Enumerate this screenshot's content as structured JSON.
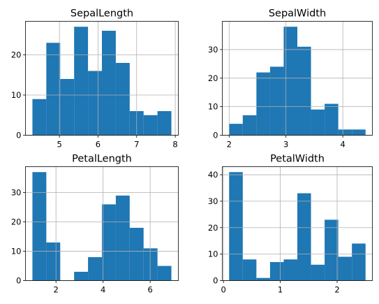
{
  "chart_data": [
    {
      "type": "bar",
      "title": "SepalLength",
      "bin_edges": [
        4.3,
        4.66,
        5.02,
        5.38,
        5.74,
        6.1,
        6.46,
        6.82,
        7.18,
        7.54,
        7.9
      ],
      "values": [
        9,
        23,
        14,
        27,
        16,
        26,
        18,
        6,
        5,
        6
      ],
      "xlim": [
        4.12,
        8.08
      ],
      "ylim": [
        0,
        28.35
      ],
      "xticks": [
        5,
        6,
        7,
        8
      ],
      "yticks": [
        0,
        10,
        20
      ],
      "grid": true
    },
    {
      "type": "bar",
      "title": "SepalWidth",
      "bin_edges": [
        2.0,
        2.24,
        2.48,
        2.72,
        2.96,
        3.2,
        3.44,
        3.68,
        3.92,
        4.16,
        4.4
      ],
      "values": [
        4,
        7,
        22,
        24,
        38,
        31,
        9,
        11,
        2,
        2
      ],
      "xlim": [
        1.88,
        4.52
      ],
      "ylim": [
        0,
        39.9
      ],
      "xticks": [
        2,
        3,
        4
      ],
      "yticks": [
        0,
        10,
        20,
        30
      ],
      "grid": true
    },
    {
      "type": "bar",
      "title": "PetalLength",
      "bin_edges": [
        1.0,
        1.59,
        2.18,
        2.77,
        3.36,
        3.95,
        4.54,
        5.13,
        5.72,
        6.31,
        6.9
      ],
      "values": [
        37,
        13,
        0,
        3,
        8,
        26,
        29,
        18,
        11,
        5
      ],
      "xlim": [
        0.705,
        7.195
      ],
      "ylim": [
        0,
        38.85
      ],
      "xticks": [
        2,
        4,
        6
      ],
      "yticks": [
        0,
        10,
        20,
        30
      ],
      "grid": true
    },
    {
      "type": "bar",
      "title": "PetalWidth",
      "bin_edges": [
        0.1,
        0.34,
        0.58,
        0.82,
        1.06,
        1.3,
        1.54,
        1.78,
        2.02,
        2.26,
        2.5
      ],
      "values": [
        41,
        8,
        1,
        7,
        8,
        33,
        6,
        23,
        9,
        14
      ],
      "xlim": [
        -0.02,
        2.62
      ],
      "ylim": [
        0,
        43.05
      ],
      "xticks": [
        0,
        1,
        2
      ],
      "yticks": [
        0,
        10,
        20,
        30,
        40
      ],
      "grid": true
    }
  ],
  "colors": {
    "bar": "#1f77b4",
    "grid": "#b0b0b0",
    "axis": "#000000"
  }
}
